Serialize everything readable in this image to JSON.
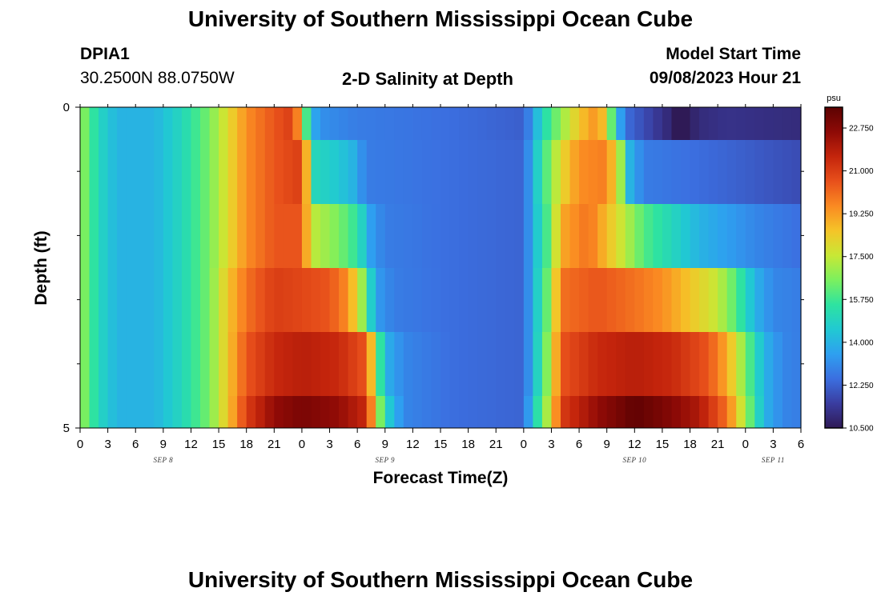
{
  "header": {
    "title_top": "University of Southern Mississippi Ocean Cube",
    "title_bottom": "University of Southern Mississippi Ocean Cube",
    "station_id": "DPIA1",
    "coords": "30.2500N  88.0750W",
    "plot_title": "2-D Salinity at Depth",
    "model_start_label": "Model Start Time",
    "model_start_value": "09/08/2023 Hour 21"
  },
  "chart_data": {
    "type": "heatmap",
    "title": "2-D Salinity at Depth",
    "xlabel": "Forecast Time(Z)",
    "ylabel": "Depth (ft)",
    "colorbar_unit": "psu",
    "colorbar_ticks": [
      "10.500",
      "12.250",
      "14.000",
      "15.750",
      "17.500",
      "19.250",
      "21.000",
      "22.750"
    ],
    "vmin": 10.5,
    "vmax": 23.6,
    "x_start_hour": 0,
    "x_hours": 78,
    "x_tick_labels": [
      "0",
      "3",
      "6",
      "9",
      "12",
      "15",
      "18",
      "21",
      "0",
      "3",
      "6",
      "9",
      "12",
      "15",
      "18",
      "21",
      "0",
      "3",
      "6",
      "9",
      "12",
      "15",
      "18",
      "21",
      "0",
      "3",
      "6"
    ],
    "date_labels": [
      {
        "label": "SEP 8",
        "hour": 9
      },
      {
        "label": "SEP 9",
        "hour": 33
      },
      {
        "label": "SEP 10",
        "hour": 60
      },
      {
        "label": "SEP 11",
        "hour": 75
      }
    ],
    "y_tick_labels": [
      {
        "value": 0,
        "label": "0"
      },
      {
        "value": 5,
        "label": "5"
      }
    ],
    "y_minor_ticks": [
      1,
      2,
      3,
      4
    ],
    "depth_layers_ft": [
      0.25,
      1.0,
      2.0,
      3.0,
      4.0,
      4.75
    ],
    "salinity_keyframes_psu": [
      [
        [
          0,
          17
        ],
        [
          2,
          15
        ],
        [
          4,
          14
        ],
        [
          8,
          14
        ],
        [
          11,
          15
        ],
        [
          14,
          16.5
        ],
        [
          16,
          18
        ],
        [
          18,
          19.5
        ],
        [
          21,
          20.5
        ],
        [
          23,
          21
        ],
        [
          23.8,
          19
        ],
        [
          24.2,
          17
        ],
        [
          25,
          14
        ],
        [
          26,
          13.2
        ],
        [
          30,
          12.8
        ],
        [
          40,
          12.5
        ],
        [
          48,
          12.2
        ],
        [
          49,
          13.5
        ],
        [
          50,
          15
        ],
        [
          52,
          16.8
        ],
        [
          54,
          18.5
        ],
        [
          56,
          19.5
        ],
        [
          57,
          18
        ],
        [
          58,
          14.5
        ],
        [
          59,
          12.5
        ],
        [
          62,
          11.5
        ],
        [
          63.5,
          11
        ],
        [
          64.5,
          10.5
        ],
        [
          65.5,
          10.5
        ],
        [
          67,
          11
        ],
        [
          70,
          11.2
        ],
        [
          78,
          11
        ]
      ],
      [
        [
          0,
          17
        ],
        [
          2,
          15
        ],
        [
          4,
          14
        ],
        [
          8,
          14
        ],
        [
          11,
          15
        ],
        [
          14,
          16.5
        ],
        [
          16,
          18
        ],
        [
          18,
          19.5
        ],
        [
          21,
          20.5
        ],
        [
          24,
          21
        ],
        [
          24.7,
          18
        ],
        [
          25.5,
          15
        ],
        [
          28,
          14.5
        ],
        [
          29.5,
          14
        ],
        [
          31,
          12.8
        ],
        [
          40,
          12.5
        ],
        [
          48,
          12.3
        ],
        [
          49,
          14
        ],
        [
          50,
          15.5
        ],
        [
          52,
          18
        ],
        [
          54,
          19.5
        ],
        [
          57,
          19.8
        ],
        [
          58.5,
          17
        ],
        [
          59.5,
          14
        ],
        [
          61,
          12.8
        ],
        [
          70,
          12.3
        ],
        [
          78,
          11.8
        ]
      ],
      [
        [
          0,
          17
        ],
        [
          2,
          15
        ],
        [
          4,
          14
        ],
        [
          8,
          14
        ],
        [
          11,
          15
        ],
        [
          14,
          16.5
        ],
        [
          16,
          18
        ],
        [
          18,
          19.5
        ],
        [
          21,
          20.5
        ],
        [
          24,
          20.5
        ],
        [
          25,
          17.5
        ],
        [
          28,
          16.5
        ],
        [
          30,
          15.5
        ],
        [
          31.5,
          13.5
        ],
        [
          33,
          12.8
        ],
        [
          40,
          12.5
        ],
        [
          48,
          12.3
        ],
        [
          49,
          14
        ],
        [
          51,
          16.5
        ],
        [
          52,
          19
        ],
        [
          55,
          20
        ],
        [
          58,
          18
        ],
        [
          61,
          16
        ],
        [
          64,
          15
        ],
        [
          67,
          14
        ],
        [
          70,
          13.5
        ],
        [
          73,
          13
        ],
        [
          78,
          12.5
        ]
      ],
      [
        [
          0,
          17
        ],
        [
          2,
          15
        ],
        [
          4,
          14
        ],
        [
          8,
          14
        ],
        [
          11,
          15
        ],
        [
          14,
          16.5
        ],
        [
          16,
          18.5
        ],
        [
          18,
          20
        ],
        [
          21,
          21
        ],
        [
          24,
          20.8
        ],
        [
          27,
          20.5
        ],
        [
          29,
          19.5
        ],
        [
          30.5,
          17
        ],
        [
          32,
          13.5
        ],
        [
          34,
          12.8
        ],
        [
          40,
          12.5
        ],
        [
          48,
          12.3
        ],
        [
          49,
          14
        ],
        [
          51,
          17
        ],
        [
          52,
          20
        ],
        [
          56,
          20.5
        ],
        [
          60,
          20
        ],
        [
          63,
          19.5
        ],
        [
          66,
          18.5
        ],
        [
          69,
          17.5
        ],
        [
          71,
          16
        ],
        [
          73,
          14
        ],
        [
          75,
          13
        ],
        [
          78,
          12.8
        ]
      ],
      [
        [
          0,
          17
        ],
        [
          2,
          15
        ],
        [
          4,
          14
        ],
        [
          8,
          14
        ],
        [
          11,
          15
        ],
        [
          14,
          16.5
        ],
        [
          16,
          18.5
        ],
        [
          18,
          20.5
        ],
        [
          21,
          21.5
        ],
        [
          24,
          21.8
        ],
        [
          28,
          21.5
        ],
        [
          31,
          20.5
        ],
        [
          32,
          17
        ],
        [
          33,
          14
        ],
        [
          35,
          13
        ],
        [
          40,
          12.5
        ],
        [
          48,
          12.3
        ],
        [
          49,
          14
        ],
        [
          51,
          17.5
        ],
        [
          52,
          20.5
        ],
        [
          56,
          21.5
        ],
        [
          60,
          21.8
        ],
        [
          64,
          21.5
        ],
        [
          68,
          20.5
        ],
        [
          70,
          19
        ],
        [
          72,
          16.5
        ],
        [
          74,
          14
        ],
        [
          76,
          13
        ],
        [
          78,
          12.8
        ]
      ],
      [
        [
          0,
          17
        ],
        [
          2,
          15
        ],
        [
          4,
          14
        ],
        [
          8,
          14
        ],
        [
          11,
          15
        ],
        [
          14,
          16.5
        ],
        [
          16,
          18.5
        ],
        [
          18,
          21
        ],
        [
          21,
          22.5
        ],
        [
          24,
          23
        ],
        [
          28,
          22.5
        ],
        [
          31,
          21.5
        ],
        [
          32,
          18
        ],
        [
          33,
          15
        ],
        [
          35,
          13
        ],
        [
          40,
          12.5
        ],
        [
          48,
          12.3
        ],
        [
          49,
          14.5
        ],
        [
          51,
          18
        ],
        [
          52,
          21
        ],
        [
          56,
          22.5
        ],
        [
          60,
          23.5
        ],
        [
          63,
          23
        ],
        [
          67,
          22
        ],
        [
          70,
          20
        ],
        [
          72,
          17
        ],
        [
          74,
          14
        ],
        [
          76,
          13
        ],
        [
          78,
          12.8
        ]
      ]
    ],
    "colormap": [
      "#2f1a56",
      "#3a3da0",
      "#3b6fe0",
      "#2ea0f0",
      "#21c9d2",
      "#2ee3a0",
      "#7cf05e",
      "#c8e835",
      "#f5c428",
      "#fa8a22",
      "#e8501b",
      "#c4250c",
      "#8e0a06",
      "#5c0202"
    ]
  }
}
